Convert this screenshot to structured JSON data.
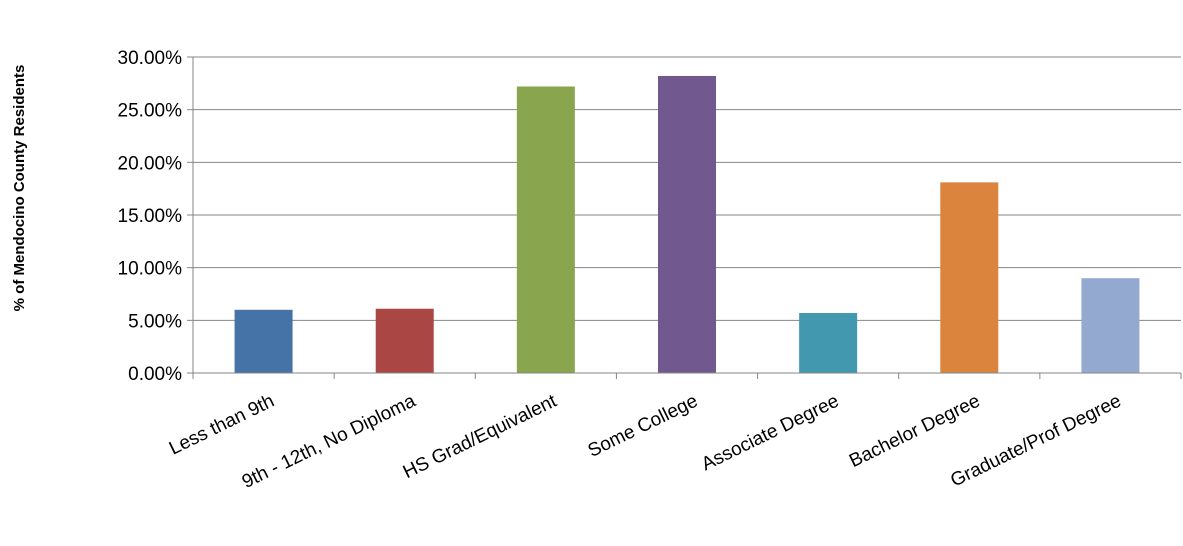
{
  "chart_data": {
    "type": "bar",
    "title": "",
    "xlabel": "",
    "ylabel": "% of Mendocino County Residents",
    "categories": [
      "Less than 9th",
      "9th - 12th, No Diploma",
      "HS Grad/Equivalent",
      "Some College",
      "Associate Degree",
      "Bachelor Degree",
      "Graduate/Prof Degree"
    ],
    "values": [
      6.0,
      6.1,
      27.2,
      28.2,
      5.7,
      18.1,
      9.0
    ],
    "colors": [
      "#4572A7",
      "#AA4643",
      "#89A54E",
      "#71588F",
      "#4198AF",
      "#DB843D",
      "#93A9CF"
    ],
    "ylim": [
      0,
      30
    ],
    "yticks": [
      "0.00%",
      "5.00%",
      "10.00%",
      "15.00%",
      "20.00%",
      "25.00%",
      "30.00%"
    ],
    "grid": true,
    "legend": "none"
  }
}
